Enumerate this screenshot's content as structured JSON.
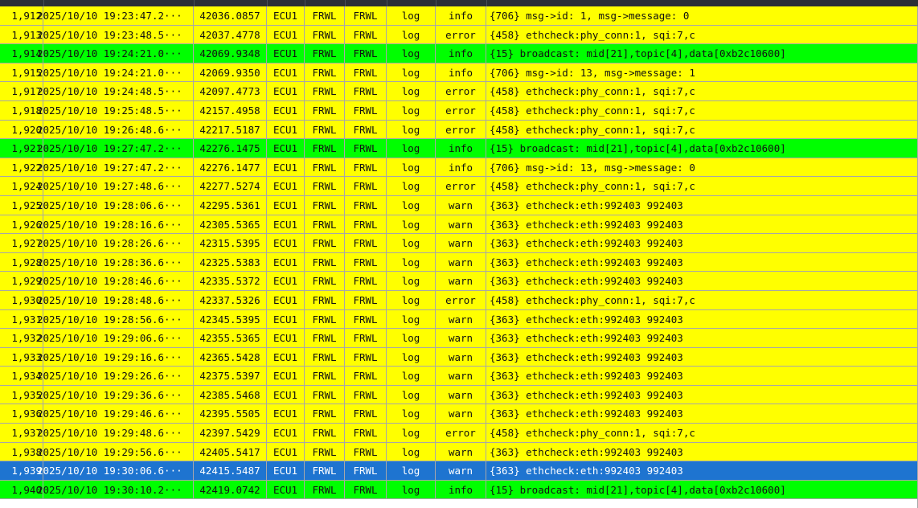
{
  "log_table": {
    "rows": [
      {
        "no": "1,912",
        "time": "2025/10/10 19:23:47.2···",
        "ts": "42036.0857",
        "ecu": "ECU1",
        "app": "FRWL",
        "ctx": "FRWL",
        "type": "log",
        "level": "info",
        "msg": "{706} msg->id: 1, msg->message: 0",
        "color": "yellow"
      },
      {
        "no": "1,913",
        "time": "2025/10/10 19:23:48.5···",
        "ts": "42037.4778",
        "ecu": "ECU1",
        "app": "FRWL",
        "ctx": "FRWL",
        "type": "log",
        "level": "error",
        "msg": "{458} ethcheck:phy_conn:1, sqi:7,c",
        "color": "yellow"
      },
      {
        "no": "1,914",
        "time": "2025/10/10 19:24:21.0···",
        "ts": "42069.9348",
        "ecu": "ECU1",
        "app": "FRWL",
        "ctx": "FRWL",
        "type": "log",
        "level": "info",
        "msg": "{15} broadcast: mid[21],topic[4],data[0xb2c10600]",
        "color": "green"
      },
      {
        "no": "1,915",
        "time": "2025/10/10 19:24:21.0···",
        "ts": "42069.9350",
        "ecu": "ECU1",
        "app": "FRWL",
        "ctx": "FRWL",
        "type": "log",
        "level": "info",
        "msg": "{706} msg->id: 13, msg->message: 1",
        "color": "yellow"
      },
      {
        "no": "1,917",
        "time": "2025/10/10 19:24:48.5···",
        "ts": "42097.4773",
        "ecu": "ECU1",
        "app": "FRWL",
        "ctx": "FRWL",
        "type": "log",
        "level": "error",
        "msg": "{458} ethcheck:phy_conn:1, sqi:7,c",
        "color": "yellow"
      },
      {
        "no": "1,918",
        "time": "2025/10/10 19:25:48.5···",
        "ts": "42157.4958",
        "ecu": "ECU1",
        "app": "FRWL",
        "ctx": "FRWL",
        "type": "log",
        "level": "error",
        "msg": "{458} ethcheck:phy_conn:1, sqi:7,c",
        "color": "yellow"
      },
      {
        "no": "1,920",
        "time": "2025/10/10 19:26:48.6···",
        "ts": "42217.5187",
        "ecu": "ECU1",
        "app": "FRWL",
        "ctx": "FRWL",
        "type": "log",
        "level": "error",
        "msg": "{458} ethcheck:phy_conn:1, sqi:7,c",
        "color": "yellow"
      },
      {
        "no": "1,921",
        "time": "2025/10/10 19:27:47.2···",
        "ts": "42276.1475",
        "ecu": "ECU1",
        "app": "FRWL",
        "ctx": "FRWL",
        "type": "log",
        "level": "info",
        "msg": "{15} broadcast: mid[21],topic[4],data[0xb2c10600]",
        "color": "green"
      },
      {
        "no": "1,922",
        "time": "2025/10/10 19:27:47.2···",
        "ts": "42276.1477",
        "ecu": "ECU1",
        "app": "FRWL",
        "ctx": "FRWL",
        "type": "log",
        "level": "info",
        "msg": "{706} msg->id: 13, msg->message: 0",
        "color": "yellow"
      },
      {
        "no": "1,924",
        "time": "2025/10/10 19:27:48.6···",
        "ts": "42277.5274",
        "ecu": "ECU1",
        "app": "FRWL",
        "ctx": "FRWL",
        "type": "log",
        "level": "error",
        "msg": "{458} ethcheck:phy_conn:1, sqi:7,c",
        "color": "yellow"
      },
      {
        "no": "1,925",
        "time": "2025/10/10 19:28:06.6···",
        "ts": "42295.5361",
        "ecu": "ECU1",
        "app": "FRWL",
        "ctx": "FRWL",
        "type": "log",
        "level": "warn",
        "msg": "{363} ethcheck:eth:992403 992403",
        "color": "yellow"
      },
      {
        "no": "1,926",
        "time": "2025/10/10 19:28:16.6···",
        "ts": "42305.5365",
        "ecu": "ECU1",
        "app": "FRWL",
        "ctx": "FRWL",
        "type": "log",
        "level": "warn",
        "msg": "{363} ethcheck:eth:992403 992403",
        "color": "yellow"
      },
      {
        "no": "1,927",
        "time": "2025/10/10 19:28:26.6···",
        "ts": "42315.5395",
        "ecu": "ECU1",
        "app": "FRWL",
        "ctx": "FRWL",
        "type": "log",
        "level": "warn",
        "msg": "{363} ethcheck:eth:992403 992403",
        "color": "yellow"
      },
      {
        "no": "1,928",
        "time": "2025/10/10 19:28:36.6···",
        "ts": "42325.5383",
        "ecu": "ECU1",
        "app": "FRWL",
        "ctx": "FRWL",
        "type": "log",
        "level": "warn",
        "msg": "{363} ethcheck:eth:992403 992403",
        "color": "yellow"
      },
      {
        "no": "1,929",
        "time": "2025/10/10 19:28:46.6···",
        "ts": "42335.5372",
        "ecu": "ECU1",
        "app": "FRWL",
        "ctx": "FRWL",
        "type": "log",
        "level": "warn",
        "msg": "{363} ethcheck:eth:992403 992403",
        "color": "yellow"
      },
      {
        "no": "1,930",
        "time": "2025/10/10 19:28:48.6···",
        "ts": "42337.5326",
        "ecu": "ECU1",
        "app": "FRWL",
        "ctx": "FRWL",
        "type": "log",
        "level": "error",
        "msg": "{458} ethcheck:phy_conn:1, sqi:7,c",
        "color": "yellow"
      },
      {
        "no": "1,931",
        "time": "2025/10/10 19:28:56.6···",
        "ts": "42345.5395",
        "ecu": "ECU1",
        "app": "FRWL",
        "ctx": "FRWL",
        "type": "log",
        "level": "warn",
        "msg": "{363} ethcheck:eth:992403 992403",
        "color": "yellow"
      },
      {
        "no": "1,932",
        "time": "2025/10/10 19:29:06.6···",
        "ts": "42355.5365",
        "ecu": "ECU1",
        "app": "FRWL",
        "ctx": "FRWL",
        "type": "log",
        "level": "warn",
        "msg": "{363} ethcheck:eth:992403 992403",
        "color": "yellow"
      },
      {
        "no": "1,933",
        "time": "2025/10/10 19:29:16.6···",
        "ts": "42365.5428",
        "ecu": "ECU1",
        "app": "FRWL",
        "ctx": "FRWL",
        "type": "log",
        "level": "warn",
        "msg": "{363} ethcheck:eth:992403 992403",
        "color": "yellow"
      },
      {
        "no": "1,934",
        "time": "2025/10/10 19:29:26.6···",
        "ts": "42375.5397",
        "ecu": "ECU1",
        "app": "FRWL",
        "ctx": "FRWL",
        "type": "log",
        "level": "warn",
        "msg": "{363} ethcheck:eth:992403 992403",
        "color": "yellow"
      },
      {
        "no": "1,935",
        "time": "2025/10/10 19:29:36.6···",
        "ts": "42385.5468",
        "ecu": "ECU1",
        "app": "FRWL",
        "ctx": "FRWL",
        "type": "log",
        "level": "warn",
        "msg": "{363} ethcheck:eth:992403 992403",
        "color": "yellow"
      },
      {
        "no": "1,936",
        "time": "2025/10/10 19:29:46.6···",
        "ts": "42395.5505",
        "ecu": "ECU1",
        "app": "FRWL",
        "ctx": "FRWL",
        "type": "log",
        "level": "warn",
        "msg": "{363} ethcheck:eth:992403 992403",
        "color": "yellow"
      },
      {
        "no": "1,937",
        "time": "2025/10/10 19:29:48.6···",
        "ts": "42397.5429",
        "ecu": "ECU1",
        "app": "FRWL",
        "ctx": "FRWL",
        "type": "log",
        "level": "error",
        "msg": "{458} ethcheck:phy_conn:1, sqi:7,c",
        "color": "yellow"
      },
      {
        "no": "1,938",
        "time": "2025/10/10 19:29:56.6···",
        "ts": "42405.5417",
        "ecu": "ECU1",
        "app": "FRWL",
        "ctx": "FRWL",
        "type": "log",
        "level": "warn",
        "msg": "{363} ethcheck:eth:992403 992403",
        "color": "yellow"
      },
      {
        "no": "1,939",
        "time": "2025/10/10 19:30:06.6···",
        "ts": "42415.5487",
        "ecu": "ECU1",
        "app": "FRWL",
        "ctx": "FRWL",
        "type": "log",
        "level": "warn",
        "msg": "{363} ethcheck:eth:992403 992403",
        "color": "selected"
      },
      {
        "no": "1,940",
        "time": "2025/10/10 19:30:10.2···",
        "ts": "42419.0742",
        "ecu": "ECU1",
        "app": "FRWL",
        "ctx": "FRWL",
        "type": "log",
        "level": "info",
        "msg": "{15} broadcast: mid[21],topic[4],data[0xb2c10600]",
        "color": "green"
      }
    ]
  },
  "colors": {
    "yellow": "#ffff00",
    "green": "#00ff00",
    "selected": "#1e74d0",
    "grid_line": "#a7a7a7"
  }
}
